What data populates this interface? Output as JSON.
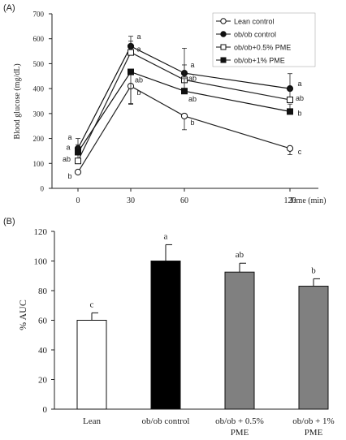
{
  "chart_data": [
    {
      "panel_label": "(A)",
      "type": "line",
      "ylabel": "Blood glucose (mg/dL)",
      "xlabel": "Time (min)",
      "x": [
        0,
        30,
        60,
        120
      ],
      "x_ticks": [
        "0",
        "30",
        "60",
        "120"
      ],
      "ylim": [
        0,
        700
      ],
      "y_ticks": [
        "0",
        "100",
        "200",
        "300",
        "400",
        "500",
        "600",
        "700"
      ],
      "legend_position": "top-right",
      "series": [
        {
          "name": "Lean control",
          "marker": "open-circle",
          "color": "#222222",
          "values": [
            65,
            410,
            290,
            160
          ],
          "errors": [
            0,
            70,
            55,
            25
          ],
          "letters": [
            "b",
            "b",
            "b",
            "c"
          ]
        },
        {
          "name": "ob/ob control",
          "marker": "filled-circle",
          "color": "#111111",
          "values": [
            160,
            570,
            462,
            400
          ],
          "errors": [
            40,
            40,
            100,
            60
          ],
          "letters": [
            "a",
            "a",
            "a",
            "a"
          ]
        },
        {
          "name": "ob/ob+0.5% PME",
          "marker": "open-square",
          "color": "#222222",
          "values": [
            110,
            545,
            435,
            355
          ],
          "errors": [
            25,
            45,
            60,
            45
          ],
          "letters": [
            "ab",
            "a",
            "ab",
            "ab"
          ]
        },
        {
          "name": "ob/ob+1% PME",
          "marker": "filled-square",
          "color": "#111111",
          "values": [
            145,
            467,
            390,
            308
          ],
          "errors": [
            30,
            130,
            50,
            30
          ],
          "letters": [
            "a",
            "ab",
            "ab",
            "b"
          ]
        }
      ]
    },
    {
      "panel_label": "(B)",
      "type": "bar",
      "ylabel": "% AUC",
      "categories": [
        "Lean",
        "ob/ob control",
        "ob/ob + 0.5% PME",
        "ob/ob + 1% PME"
      ],
      "values": [
        60,
        100,
        92.5,
        83
      ],
      "errors": [
        5,
        11,
        6,
        5
      ],
      "letters": [
        "c",
        "a",
        "ab",
        "b"
      ],
      "colors": [
        "#ffffff",
        "#000000",
        "#808080",
        "#808080"
      ],
      "ylim": [
        0,
        120
      ],
      "y_ticks": [
        "0",
        "20",
        "40",
        "60",
        "80",
        "100",
        "120"
      ]
    }
  ]
}
